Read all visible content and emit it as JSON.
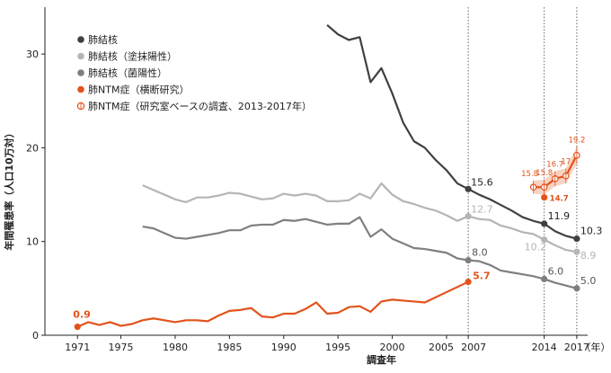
{
  "chart_data": {
    "type": "line",
    "ylabel": "年間罹患率（人口10万対）",
    "xlabel": "調査年",
    "x_unit": "（年）",
    "xlim": [
      1968,
      2018
    ],
    "ylim": [
      0,
      35
    ],
    "yticks": [
      0,
      10,
      20,
      30
    ],
    "xticks": [
      {
        "x": 1971,
        "label": "1971"
      },
      {
        "x": 1975,
        "label": "1975"
      },
      {
        "x": 1980,
        "label": "1980"
      },
      {
        "x": 1985,
        "label": "1985"
      },
      {
        "x": 1990,
        "label": "1990"
      },
      {
        "x": 1995,
        "label": "1995"
      },
      {
        "x": 2000,
        "label": "2000"
      },
      {
        "x": 2005,
        "label": "2005"
      },
      {
        "x": 2007,
        "label": "2007"
      },
      {
        "x": 2014,
        "label": "2014"
      },
      {
        "x": 2017,
        "label": "2017"
      }
    ],
    "vlines": [
      2007,
      2014,
      2017
    ],
    "grid": false,
    "legend_position": "top-left",
    "series": [
      {
        "name": "肺結核",
        "color": "#404040",
        "marker": "dot",
        "x": [
          1994,
          1995,
          1996,
          1997,
          1998,
          1999,
          2000,
          2001,
          2002,
          2003,
          2004,
          2005,
          2006,
          2007,
          2008,
          2009,
          2010,
          2011,
          2012,
          2013,
          2014,
          2015,
          2016,
          2017
        ],
        "y": [
          33.1,
          32.1,
          31.5,
          31.8,
          27.0,
          28.5,
          25.8,
          22.7,
          20.7,
          20.0,
          18.7,
          17.6,
          16.2,
          15.6,
          15.0,
          14.5,
          13.9,
          13.3,
          12.6,
          12.2,
          11.9,
          11.1,
          10.6,
          10.3
        ],
        "labels": [
          {
            "x": 2007,
            "text": "15.6"
          },
          {
            "x": 2014,
            "text": "11.9"
          },
          {
            "x": 2017,
            "text": "10.3"
          }
        ]
      },
      {
        "name": "肺結核（塗抹陽性）",
        "color": "#b5b5b5",
        "marker": "dot",
        "x": [
          1977,
          1978,
          1979,
          1980,
          1981,
          1982,
          1983,
          1984,
          1985,
          1986,
          1987,
          1988,
          1989,
          1990,
          1991,
          1992,
          1993,
          1994,
          1995,
          1996,
          1997,
          1998,
          1999,
          2000,
          2001,
          2002,
          2003,
          2004,
          2005,
          2006,
          2007,
          2008,
          2009,
          2010,
          2011,
          2012,
          2013,
          2014,
          2015,
          2016,
          2017
        ],
        "y": [
          16.0,
          15.5,
          15.0,
          14.5,
          14.2,
          14.7,
          14.7,
          14.9,
          15.2,
          15.1,
          14.8,
          14.5,
          14.6,
          15.1,
          14.9,
          15.1,
          14.9,
          14.3,
          14.3,
          14.4,
          15.1,
          14.6,
          16.2,
          15.0,
          14.3,
          14.0,
          13.6,
          13.3,
          12.8,
          12.2,
          12.7,
          12.4,
          12.3,
          11.7,
          11.4,
          11.0,
          10.8,
          10.2,
          9.6,
          9.1,
          8.9
        ],
        "labels": [
          {
            "x": 2007,
            "text": "12.7"
          },
          {
            "x": 2014,
            "text": "10.2"
          },
          {
            "x": 2017,
            "text": "8.9"
          }
        ]
      },
      {
        "name": "肺結核（菌陽性）",
        "color": "#7f7f7f",
        "marker": "dot",
        "x": [
          1977,
          1978,
          1979,
          1980,
          1981,
          1982,
          1983,
          1984,
          1985,
          1986,
          1987,
          1988,
          1989,
          1990,
          1991,
          1992,
          1993,
          1994,
          1995,
          1996,
          1997,
          1998,
          1999,
          2000,
          2001,
          2002,
          2003,
          2004,
          2005,
          2006,
          2007,
          2008,
          2009,
          2010,
          2011,
          2012,
          2013,
          2014,
          2015,
          2016,
          2017
        ],
        "y": [
          11.6,
          11.4,
          10.9,
          10.4,
          10.3,
          10.5,
          10.7,
          10.9,
          11.2,
          11.2,
          11.7,
          11.8,
          11.8,
          12.3,
          12.2,
          12.4,
          12.1,
          11.8,
          11.9,
          11.9,
          12.6,
          10.5,
          11.3,
          10.3,
          9.8,
          9.3,
          9.2,
          9.0,
          8.8,
          8.2,
          8.0,
          7.9,
          7.5,
          6.9,
          6.7,
          6.5,
          6.3,
          6.0,
          5.6,
          5.3,
          5.0
        ],
        "labels": [
          {
            "x": 2007,
            "text": "8.0"
          },
          {
            "x": 2014,
            "text": "6.0"
          },
          {
            "x": 2017,
            "text": "5.0"
          }
        ]
      },
      {
        "name": "肺NTM症（横断研究）",
        "color": "#e2531c",
        "marker": "dot",
        "x": [
          1971,
          1972,
          1973,
          1974,
          1975,
          1976,
          1977,
          1978,
          1979,
          1980,
          1981,
          1982,
          1983,
          1984,
          1985,
          1986,
          1987,
          1988,
          1989,
          1990,
          1991,
          1992,
          1993,
          1994,
          1995,
          1996,
          1997,
          1998,
          1999,
          2000,
          2001,
          2002,
          2003,
          2007
        ],
        "y": [
          0.9,
          1.4,
          1.1,
          1.4,
          1.0,
          1.2,
          1.6,
          1.8,
          1.6,
          1.4,
          1.6,
          1.6,
          1.5,
          2.1,
          2.6,
          2.7,
          2.9,
          2.0,
          1.9,
          2.3,
          2.3,
          2.8,
          3.5,
          2.3,
          2.4,
          3.0,
          3.1,
          2.5,
          3.6,
          3.8,
          3.7,
          3.6,
          3.5,
          5.7
        ],
        "labels": [
          {
            "x": 1971,
            "text": "0.9"
          },
          {
            "x": 2007,
            "text": "5.7"
          }
        ]
      },
      {
        "name": "肺NTM症（研究室ベースの調査、2013-2017年）",
        "color": "#e2531c",
        "marker": "open-circle",
        "x": [
          2013,
          2014,
          2015,
          2016,
          2017
        ],
        "y": [
          15.8,
          15.8,
          16.7,
          17.0,
          19.2
        ],
        "err_low": [
          15.1,
          15.0,
          15.9,
          16.2,
          18.3
        ],
        "err_high": [
          16.5,
          16.6,
          17.5,
          17.8,
          20.1
        ],
        "labels": [
          {
            "x": 2013,
            "text": "15.8"
          },
          {
            "x": 2014,
            "text": "15.8"
          },
          {
            "x": 2015,
            "text": "16.7"
          },
          {
            "x": 2016,
            "text": "17"
          },
          {
            "x": 2017,
            "text": "19.2"
          }
        ],
        "extra_point": {
          "x": 2014,
          "y": 14.7,
          "text": "14.7"
        }
      }
    ]
  }
}
